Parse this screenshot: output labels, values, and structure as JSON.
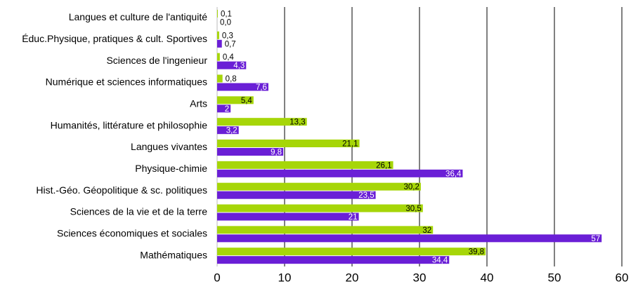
{
  "chart_data": {
    "type": "bar",
    "orientation": "horizontal",
    "categories": [
      "Langues et culture de l'antiquité",
      "Éduc.Physique, pratiques & cult. Sportives",
      "Sciences de l'ingenieur",
      "Numérique et sciences informatiques",
      "Arts",
      "Humanités, littérature et philosophie",
      "Langues vivantes",
      "Physique-chimie",
      "Hist.-Géo. Géopolitique & sc. politiques",
      "Sciences de la vie et de la terre",
      "Sciences économiques et sociales",
      "Mathématiques"
    ],
    "series": [
      {
        "color": "#a6d608",
        "values": [
          0.1,
          0.3,
          0.4,
          0.8,
          5.4,
          13.3,
          21.1,
          26.1,
          30.2,
          30.5,
          32,
          39.8
        ],
        "value_labels": [
          "0,1",
          "0,3",
          "0,4",
          "0,8",
          "5,4",
          "13,3",
          "21,1",
          "26,1",
          "30,2",
          "30,5",
          "32",
          "39,8"
        ]
      },
      {
        "color": "#6a1fd6",
        "values": [
          0.0,
          0.7,
          4.3,
          7.6,
          2,
          3.2,
          9.8,
          36.4,
          23.5,
          21,
          57,
          34.4
        ],
        "value_labels": [
          "0,0",
          "0,7",
          "4,3",
          "7,6",
          "2",
          "3,2",
          "9,8",
          "36,4",
          "23,5",
          "21",
          "57",
          "34,4"
        ]
      }
    ],
    "xlim": [
      0,
      60
    ],
    "xticks": [
      0,
      10,
      20,
      30,
      40,
      50,
      60
    ],
    "grid": true
  }
}
